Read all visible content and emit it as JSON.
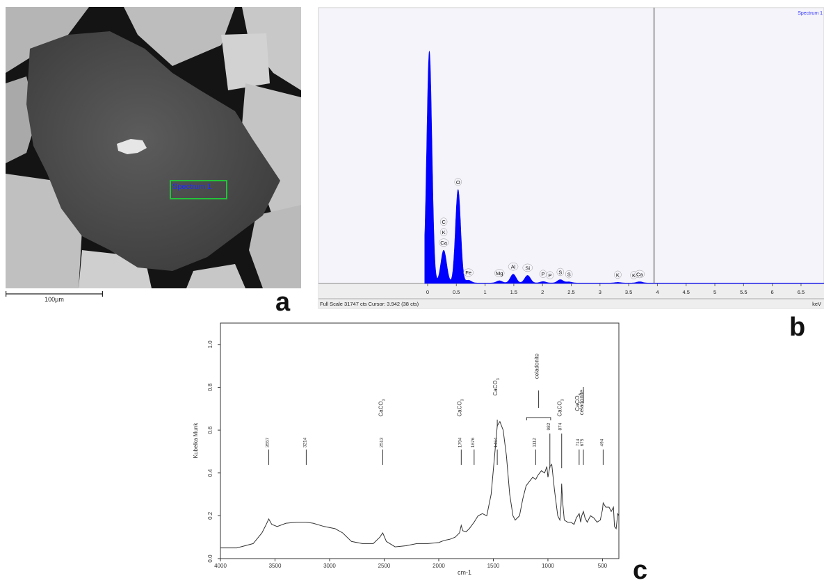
{
  "panel_letters": {
    "a": "a",
    "b": "b",
    "c": "c"
  },
  "sem": {
    "scale_bar_label": "100µm",
    "region_label": "Spectrum 1",
    "region_color": "#22c33a",
    "label_color": "#1a2cff"
  },
  "chart_data": [
    {
      "type": "area",
      "title": "",
      "legend": "Spectrum 1",
      "xlabel": "keV",
      "x_ticks": [
        "0",
        "0.5",
        "1",
        "1.5",
        "2",
        "2.5",
        "3",
        "3.5",
        "4",
        "4.5",
        "5",
        "5.5",
        "6",
        "6.5"
      ],
      "xlim": [
        -1.9,
        6.9
      ],
      "ylim": [
        0,
        31747
      ],
      "cursor_keV": 3.942,
      "status_text": "Full Scale 31747 cts Cursor: 3.942  (38 cts)",
      "fill_color": "#0000ff",
      "peaks": [
        {
          "x": 0.03,
          "y": 29000
        },
        {
          "x": 0.28,
          "y": 4100
        },
        {
          "x": 0.53,
          "y": 11700
        },
        {
          "x": 0.71,
          "y": 350
        },
        {
          "x": 1.25,
          "y": 280
        },
        {
          "x": 1.49,
          "y": 1100
        },
        {
          "x": 1.74,
          "y": 950
        },
        {
          "x": 2.01,
          "y": 180
        },
        {
          "x": 2.31,
          "y": 420
        },
        {
          "x": 2.46,
          "y": 140
        },
        {
          "x": 3.31,
          "y": 80
        },
        {
          "x": 3.69,
          "y": 160
        }
      ],
      "element_labels": [
        {
          "text": "O",
          "x": 0.53
        },
        {
          "text": "C",
          "x": 0.28
        },
        {
          "text": "K",
          "x": 0.28
        },
        {
          "text": "Ca",
          "x": 0.28
        },
        {
          "text": "Fe",
          "x": 0.71
        },
        {
          "text": "Mg",
          "x": 1.25
        },
        {
          "text": "Al",
          "x": 1.49
        },
        {
          "text": "Si",
          "x": 1.74
        },
        {
          "text": "P",
          "x": 2.01
        },
        {
          "text": "P",
          "x": 2.13
        },
        {
          "text": "S",
          "x": 2.31
        },
        {
          "text": "S",
          "x": 2.46
        },
        {
          "text": "K",
          "x": 3.31
        },
        {
          "text": "K",
          "x": 3.59
        },
        {
          "text": "Ca",
          "x": 3.69
        }
      ]
    },
    {
      "type": "line",
      "title": "",
      "xlabel": "cm-1",
      "ylabel": "Kubelka Munk",
      "xlim": [
        4000,
        350
      ],
      "ylim": [
        0,
        1.1
      ],
      "x_ticks": [
        4000,
        3500,
        3000,
        2500,
        2000,
        1500,
        1000,
        500
      ],
      "y_ticks": [
        "0.0",
        "0.2",
        "0.4",
        "0.6",
        "0.8",
        "1.0"
      ],
      "x": [
        4000,
        3850,
        3700,
        3620,
        3580,
        3557,
        3530,
        3480,
        3400,
        3300,
        3214,
        3150,
        3050,
        2950,
        2880,
        2800,
        2700,
        2600,
        2540,
        2513,
        2480,
        2400,
        2300,
        2200,
        2100,
        2000,
        1950,
        1900,
        1850,
        1810,
        1794,
        1780,
        1750,
        1720,
        1676,
        1640,
        1600,
        1560,
        1520,
        1490,
        1464,
        1440,
        1410,
        1380,
        1350,
        1320,
        1300,
        1260,
        1230,
        1200,
        1170,
        1140,
        1112,
        1090,
        1060,
        1030,
        1010,
        1000,
        982,
        965,
        940,
        910,
        890,
        880,
        874,
        866,
        850,
        820,
        790,
        760,
        740,
        714,
        700,
        690,
        675,
        660,
        640,
        610,
        580,
        550,
        520,
        500,
        494,
        470,
        440,
        420,
        400,
        390,
        375,
        360,
        350
      ],
      "y": [
        0.05,
        0.05,
        0.07,
        0.12,
        0.16,
        0.185,
        0.16,
        0.15,
        0.165,
        0.17,
        0.17,
        0.165,
        0.15,
        0.14,
        0.12,
        0.08,
        0.07,
        0.07,
        0.1,
        0.12,
        0.08,
        0.055,
        0.06,
        0.07,
        0.07,
        0.075,
        0.085,
        0.09,
        0.1,
        0.12,
        0.155,
        0.13,
        0.125,
        0.14,
        0.17,
        0.2,
        0.21,
        0.2,
        0.3,
        0.47,
        0.62,
        0.64,
        0.6,
        0.48,
        0.3,
        0.2,
        0.18,
        0.2,
        0.28,
        0.34,
        0.36,
        0.38,
        0.37,
        0.39,
        0.41,
        0.4,
        0.43,
        0.38,
        0.43,
        0.44,
        0.32,
        0.2,
        0.18,
        0.25,
        0.35,
        0.27,
        0.18,
        0.17,
        0.17,
        0.16,
        0.19,
        0.21,
        0.17,
        0.2,
        0.22,
        0.19,
        0.17,
        0.2,
        0.19,
        0.17,
        0.18,
        0.23,
        0.26,
        0.24,
        0.24,
        0.22,
        0.24,
        0.15,
        0.14,
        0.21,
        0.2
      ],
      "peak_markers": [
        {
          "label": "3557",
          "x": 3557,
          "compound": ""
        },
        {
          "label": "3214",
          "x": 3214,
          "compound": ""
        },
        {
          "label": "2513",
          "x": 2513,
          "compound": "CaCO3"
        },
        {
          "label": "1794",
          "x": 1794,
          "compound": "CaCO3"
        },
        {
          "label": "1676",
          "x": 1676,
          "compound": ""
        },
        {
          "label": "1464",
          "x": 1464,
          "compound": "CaCO3"
        },
        {
          "label": "1112",
          "x": 1112,
          "compound": ""
        },
        {
          "label": "982",
          "x": 982,
          "compound": ""
        },
        {
          "label": "874",
          "x": 874,
          "compound": "CaCO3"
        },
        {
          "label": "714",
          "x": 714,
          "compound": "CaCO3"
        },
        {
          "label": "675",
          "x": 675,
          "compound": "celadonite"
        },
        {
          "label": "494",
          "x": 494,
          "compound": ""
        }
      ],
      "bracket_label": "celadonite"
    }
  ]
}
